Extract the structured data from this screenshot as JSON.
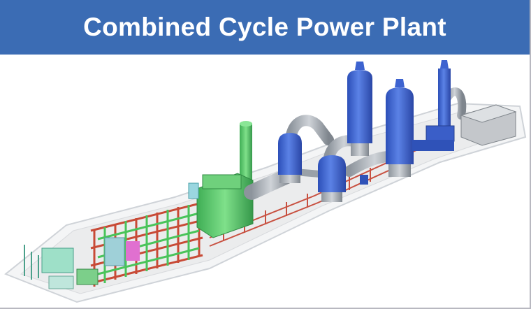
{
  "title": "Combined Cycle Power Plant"
}
